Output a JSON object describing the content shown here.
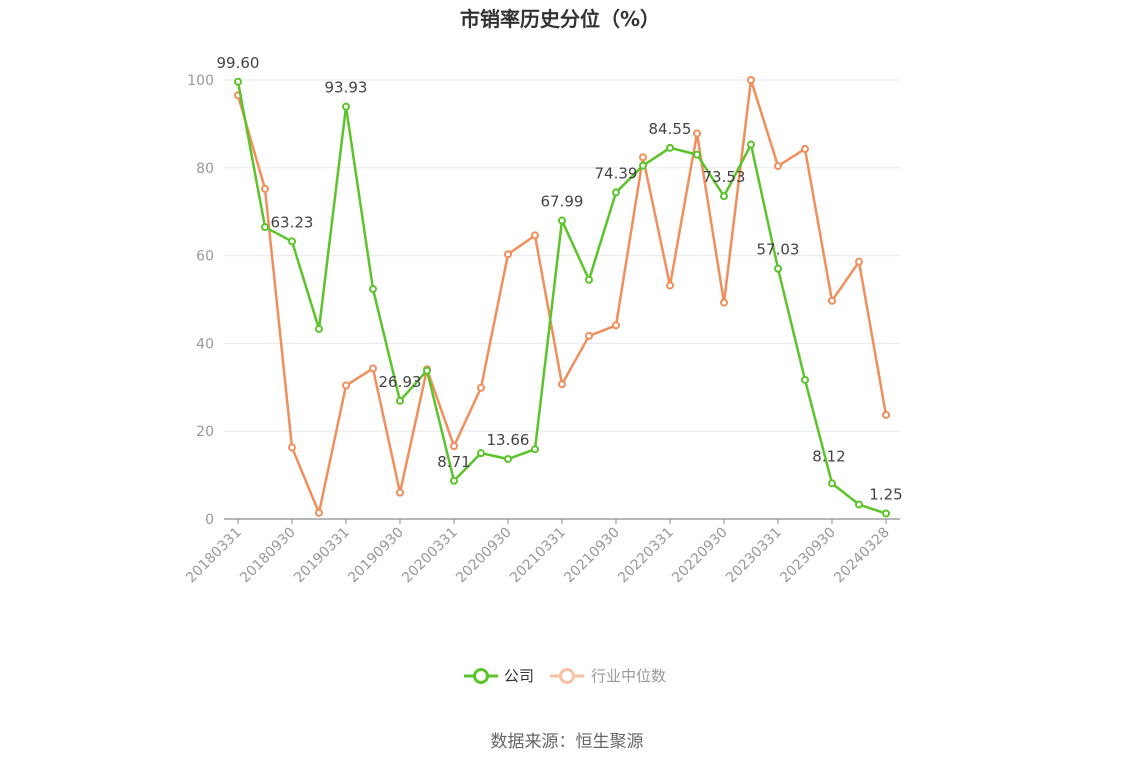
{
  "chart_data": {
    "type": "line",
    "title": "市销率历史分位（%）",
    "xlabel": "",
    "ylabel": "",
    "ylim": [
      0,
      100
    ],
    "yticks": [
      0,
      20,
      40,
      60,
      80,
      100
    ],
    "grid": true,
    "x": [
      "20180331",
      "20180630",
      "20180930",
      "20181231",
      "20190331",
      "20190630",
      "20190930",
      "20191231",
      "20200331",
      "20200630",
      "20200930",
      "20201231",
      "20210331",
      "20210630",
      "20210930",
      "20211231",
      "20220331",
      "20220630",
      "20220930",
      "20221231",
      "20230331",
      "20230630",
      "20230930",
      "20231231",
      "20240328"
    ],
    "xtick_labels": [
      "20180331",
      "20180930",
      "20190331",
      "20190930",
      "20200331",
      "20200930",
      "20210331",
      "20210930",
      "20220331",
      "20220930",
      "20230331",
      "20230930",
      "20240328"
    ],
    "series": [
      {
        "name": "公司",
        "color": "#5ac42a",
        "values": [
          99.6,
          66.5,
          63.23,
          43.3,
          93.93,
          52.4,
          26.93,
          33.8,
          8.71,
          15.0,
          13.66,
          15.9,
          67.99,
          54.5,
          74.39,
          80.5,
          84.55,
          83.0,
          73.53,
          85.3,
          57.03,
          31.7,
          8.12,
          3.3,
          1.25
        ],
        "labels": {
          "0": "99.60",
          "2": "63.23",
          "4": "93.93",
          "6": "26.93",
          "8": "8.71",
          "10": "13.66",
          "12": "67.99",
          "14": "74.39",
          "16": "84.55",
          "18": "73.53",
          "20": "57.03",
          "22": "8.12",
          "24": "1.25"
        }
      },
      {
        "name": "行业中位数",
        "color": "#f28e5c",
        "values": [
          96.5,
          75.2,
          16.3,
          1.4,
          30.4,
          34.3,
          6.0,
          34.1,
          16.6,
          29.9,
          60.3,
          64.6,
          30.7,
          41.7,
          44.1,
          82.4,
          53.2,
          87.8,
          49.3,
          100.0,
          80.4,
          84.3,
          49.7,
          58.6,
          23.7
        ]
      }
    ],
    "legend": "bottom"
  },
  "source_text": "数据来源：恒生聚源"
}
